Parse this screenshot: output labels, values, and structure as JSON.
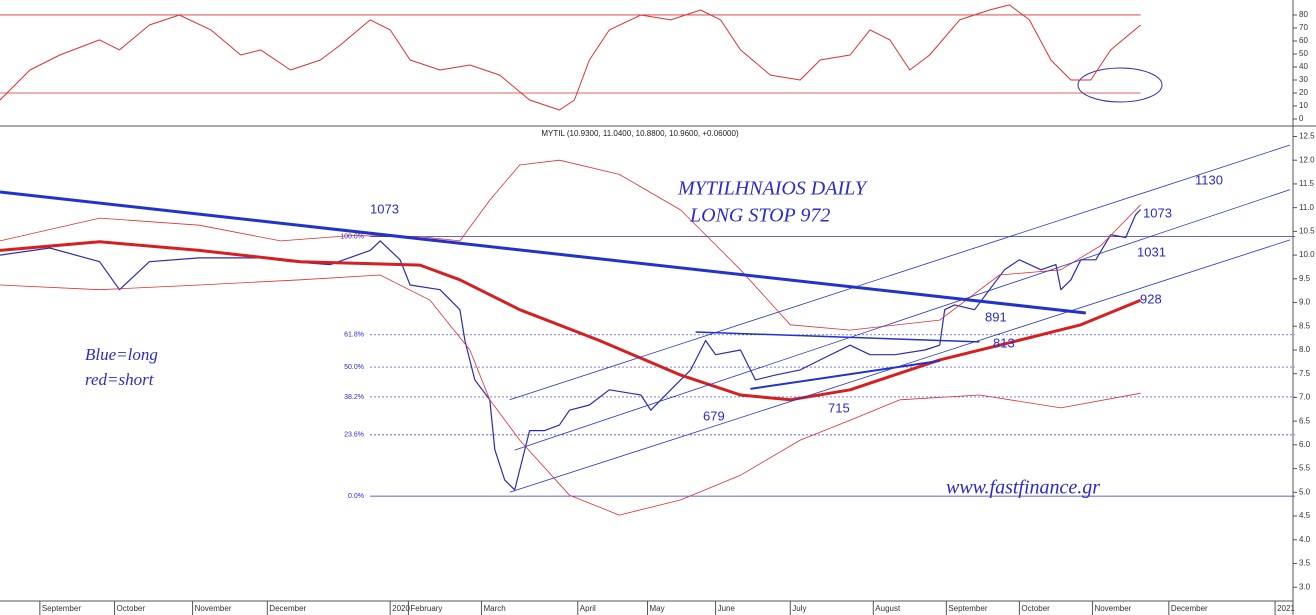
{
  "chart_data": [
    {
      "type": "line",
      "xlim": [
        0,
        78
      ],
      "ylim": [
        -4.6,
        91.5
      ],
      "yticks": [
        0,
        10,
        20,
        30,
        40,
        50,
        60,
        70,
        80
      ],
      "hlines": [
        20,
        80
      ],
      "series": [
        {
          "color": "#e03030",
          "x": [
            0,
            1.8,
            3.6,
            6,
            7.2,
            9,
            10.8,
            12.7,
            14.5,
            15.7,
            17.5,
            19.3,
            20.5,
            22.3,
            23.5,
            24.7,
            26.5,
            28.3,
            30.1,
            31.9,
            33.7,
            34.6,
            35.5,
            36.7,
            38.6,
            40.4,
            42.2,
            43.4,
            44.6,
            46.4,
            48.2,
            49.4,
            51.2,
            52.4,
            53.6,
            54.8,
            56,
            57.8,
            59.6,
            60.8,
            62,
            63.3,
            64.5,
            65.7,
            66.9,
            68.7
          ],
          "values": [
            14.6,
            37.7,
            49.2,
            60.8,
            53.1,
            72.3,
            80,
            68.5,
            49.2,
            53.1,
            37.7,
            45.4,
            56.9,
            76.2,
            68.5,
            45.4,
            37.7,
            41.5,
            33.8,
            14.6,
            6.9,
            14.6,
            45.4,
            68.5,
            80,
            76.2,
            83.8,
            76.2,
            53.1,
            33.8,
            30,
            45.4,
            49.2,
            68.5,
            60.8,
            37.7,
            49.2,
            76.2,
            83.8,
            87.7,
            76.2,
            45.4,
            30,
            30,
            53.1,
            72.3
          ]
        }
      ]
    },
    {
      "type": "line",
      "title": "MYTIL (10.9300, 11.0400, 10.8800, 10.9600, +0.06000)",
      "xlim": [
        0,
        78
      ],
      "ylim": [
        2.73,
        12.7
      ],
      "yticks": [
        {
          "value": 3,
          "label": "3.0"
        },
        3.5,
        {
          "value": 4,
          "label": "4.0"
        },
        4.5,
        {
          "value": 5,
          "label": "5.0"
        },
        5.5,
        {
          "value": 6,
          "label": "6.0"
        },
        6.5,
        {
          "value": 7,
          "label": "7.0"
        },
        7.5,
        {
          "value": 8,
          "label": "8.0"
        },
        8.5,
        {
          "value": 9,
          "label": "9.0"
        },
        9.5,
        {
          "value": 10,
          "label": "10.0"
        },
        10.5,
        {
          "value": 11,
          "label": "11.0"
        },
        11.5,
        {
          "value": 12,
          "label": "12.0"
        },
        12.5
      ],
      "xticks": [
        {
          "value": 2.4,
          "label": "September"
        },
        {
          "value": 6.9,
          "label": "October"
        },
        {
          "value": 11.6,
          "label": "November"
        },
        {
          "value": 16.1,
          "label": "December"
        },
        {
          "value": 23.5,
          "label": "2020"
        },
        {
          "value": 24.6,
          "label": "February"
        },
        {
          "value": 29,
          "label": "March"
        },
        {
          "value": 34.8,
          "label": "April"
        },
        {
          "value": 39,
          "label": "May"
        },
        {
          "value": 43.1,
          "label": "June"
        },
        {
          "value": 47.6,
          "label": "July"
        },
        {
          "value": 52.6,
          "label": "August"
        },
        {
          "value": 57,
          "label": "September"
        },
        {
          "value": 61.4,
          "label": "October"
        },
        {
          "value": 65.8,
          "label": "November"
        },
        {
          "value": 70.4,
          "label": "December"
        },
        {
          "value": 76.8,
          "label": "2021"
        }
      ],
      "series": [
        {
          "color": "#2b2bb0",
          "width": 1.2,
          "x": [
            0,
            3,
            6,
            7.2,
            9,
            12,
            15.7,
            17.5,
            19.9,
            22.3,
            22.9,
            24.1,
            24.7,
            26.5,
            27.7,
            28,
            28.6,
            29.5,
            29.8,
            30.4,
            31,
            31.9,
            32.8,
            33.7,
            34.3,
            35.5,
            36.7,
            38.6,
            39.2,
            40.4,
            41.6,
            42.5,
            43.1,
            44.6,
            45.5,
            46.7,
            48.2,
            49.4,
            51.2,
            52.4,
            53.9,
            55.7,
            56.6,
            56.9,
            57.5,
            58.7,
            59.6,
            60.5,
            61.4,
            62.7,
            63.6,
            63.9,
            64.5,
            65.1,
            66,
            66.9,
            67.8,
            68.4,
            68.7
          ],
          "values": [
            10.0,
            10.15,
            9.86,
            9.27,
            9.86,
            9.94,
            9.94,
            9.86,
            9.8,
            10.1,
            10.3,
            9.9,
            9.37,
            9.27,
            8.85,
            8.2,
            7.37,
            6.95,
            5.9,
            5.26,
            5.05,
            6.3,
            6.3,
            6.42,
            6.73,
            6.84,
            7.16,
            7.05,
            6.73,
            7.16,
            7.58,
            8.2,
            7.9,
            8.0,
            7.37,
            7.47,
            7.58,
            7.79,
            8.1,
            7.9,
            7.9,
            8.0,
            8.1,
            8.85,
            8.95,
            8.85,
            9.27,
            9.69,
            9.9,
            9.69,
            9.8,
            9.27,
            9.48,
            9.9,
            9.9,
            10.43,
            10.37,
            10.85,
            10.96
          ]
        },
        {
          "color": "#d42020",
          "width": 3,
          "x": [
            0,
            6,
            12,
            18.1,
            25.3,
            27.7,
            31.3,
            36.1,
            41,
            44.6,
            47.6,
            51.2,
            56.6,
            60.2,
            65.1,
            68.7
          ],
          "values": [
            10.1,
            10.28,
            10.1,
            9.86,
            9.79,
            9.48,
            8.85,
            8.2,
            7.47,
            7.05,
            6.95,
            7.16,
            7.79,
            8.1,
            8.53,
            9.05
          ]
        },
        {
          "color": "#e03030",
          "width": 0.8,
          "x": [
            0,
            6,
            12,
            16.9,
            21.1,
            25.3,
            27.7,
            29.5,
            31.3,
            33.7,
            37.3,
            41,
            44.6,
            47.6,
            51.2,
            56.6,
            60.2,
            63.9,
            66.3,
            68.7
          ],
          "values": [
            10.3,
            10.78,
            10.63,
            10.3,
            10.41,
            10.39,
            10.3,
            11.16,
            11.9,
            12.0,
            11.7,
            10.95,
            9.69,
            8.53,
            8.42,
            8.63,
            9.58,
            9.69,
            10.2,
            11.06
          ]
        },
        {
          "color": "#e03030",
          "width": 0.8,
          "x": [
            0,
            6,
            12,
            18.1,
            22.9,
            25.9,
            28.3,
            29.5,
            31.3,
            34.3,
            37.3,
            41,
            44.6,
            48.2,
            51.2,
            54.2,
            59,
            63.9,
            68.7
          ],
          "values": [
            9.37,
            9.27,
            9.37,
            9.48,
            9.58,
            9.05,
            8.0,
            6.95,
            6.1,
            4.94,
            4.52,
            4.84,
            5.36,
            6.1,
            6.52,
            6.95,
            7.05,
            6.78,
            7.09
          ]
        }
      ],
      "trendlines": [
        {
          "x": [
            0,
            65.4
          ],
          "y": [
            11.33,
            8.78
          ],
          "width": 3
        },
        {
          "x": [
            30.7,
            77.7
          ],
          "y": [
            5.0,
            10.32
          ],
          "width": 0.8
        },
        {
          "x": [
            31,
            77.7
          ],
          "y": [
            5.89,
            11.38
          ],
          "width": 0.8
        },
        {
          "x": [
            30.7,
            77.7
          ],
          "y": [
            6.95,
            12.32
          ],
          "width": 0.8
        },
        {
          "x": [
            41.9,
            59
          ],
          "y": [
            8.38,
            8.17
          ],
          "width": 1.5
        },
        {
          "x": [
            45.2,
            56.6
          ],
          "y": [
            7.18,
            7.77
          ],
          "width": 2
        }
      ],
      "fib_levels": [
        {
          "label": "100.0%",
          "value": 10.39
        },
        {
          "label": "61.8%",
          "value": 8.32
        },
        {
          "label": "50.0%",
          "value": 7.64
        },
        {
          "label": "38.2%",
          "value": 7.01
        },
        {
          "label": "23.6%",
          "value": 6.21
        },
        {
          "label": "0.0%",
          "value": 4.92
        }
      ],
      "annotations": [
        "1073",
        "1130",
        "1073",
        "1031",
        "928",
        "891",
        "813",
        "679",
        "715",
        "MYTILHNAIOS DAILY",
        "LONG STOP 972",
        "Blue=long",
        "red=short",
        "www.fastfinance.gr"
      ]
    }
  ]
}
